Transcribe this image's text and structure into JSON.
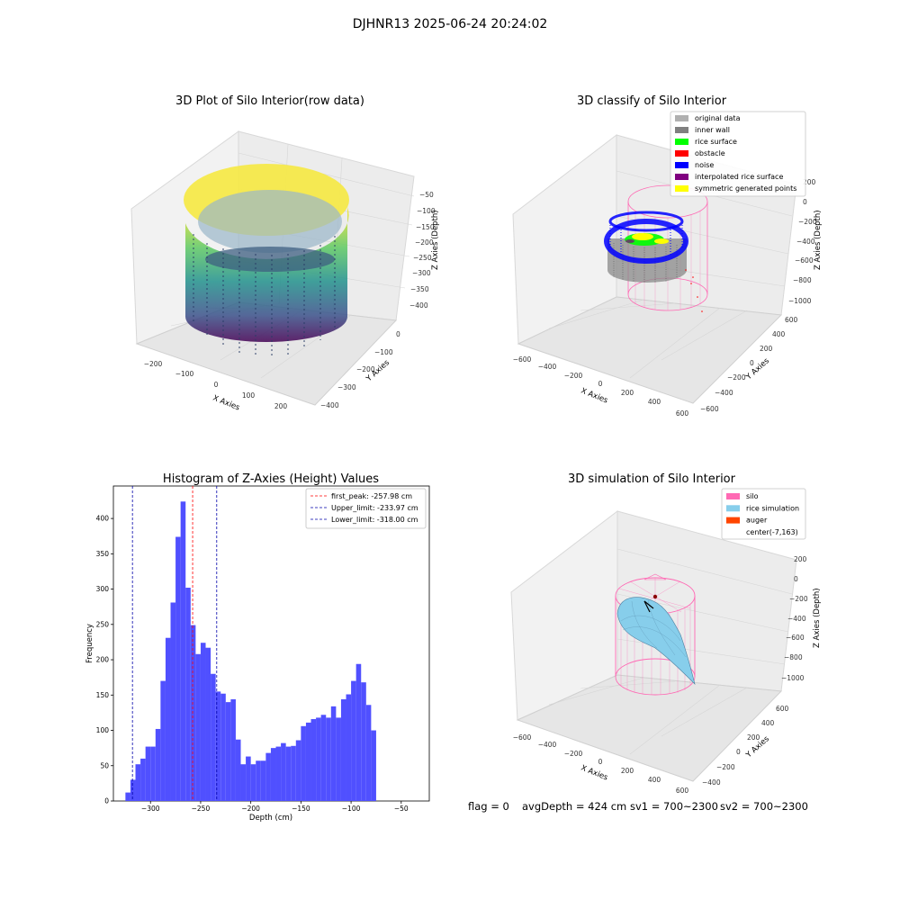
{
  "figure_title": "DJHNR13 2025-06-24 20:24:02",
  "colors": {
    "bar": "#5050ff",
    "first_peak": "#ff0000",
    "limit": "#0000aa",
    "silo": "#ff69b4",
    "rice_sim": "#87ceeb",
    "auger": "#ff4500",
    "inner_wall": "#808080",
    "noise": "#0000ff",
    "rice_surface": "#00ff00",
    "obstacle": "#ff0000",
    "interpolated": "#800080",
    "symmetric": "#ffff00",
    "original": "#b0b0b0"
  },
  "panel_raw": {
    "title": "3D Plot of Silo Interior(row data)",
    "xlabel": "X Axies",
    "ylabel": "Y Axies",
    "zlabel": "Z Axies (Depth)",
    "xticks": [
      "−200",
      "−100",
      "0",
      "100",
      "200"
    ],
    "yticks": [
      "0",
      "−100",
      "−200",
      "−300",
      "−400"
    ],
    "zticks": [
      "−50",
      "−100",
      "−150",
      "−200",
      "−250",
      "−300",
      "−350",
      "−400"
    ],
    "colormap": "viridis"
  },
  "panel_classify": {
    "title": "3D classify of Silo Interior",
    "xlabel": "X Axies",
    "ylabel": "Y Axies",
    "zlabel": "Z Axies (Depth)",
    "xticks": [
      "−600",
      "−400",
      "−200",
      "0",
      "200",
      "400",
      "600"
    ],
    "yticks": [
      "600",
      "400",
      "200",
      "0",
      "−200",
      "−400",
      "−600"
    ],
    "zticks": [
      "200",
      "0",
      "−200",
      "−400",
      "−600",
      "−800",
      "−1000"
    ],
    "legend": [
      {
        "label": "original data",
        "color": "#b0b0b0"
      },
      {
        "label": "inner wall",
        "color": "#808080"
      },
      {
        "label": "rice surface",
        "color": "#00ff00"
      },
      {
        "label": "obstacle",
        "color": "#ff0000"
      },
      {
        "label": "noise",
        "color": "#0000ff"
      },
      {
        "label": "interpolated rice surface",
        "color": "#800080"
      },
      {
        "label": "symmetric generated points",
        "color": "#ffff00"
      }
    ]
  },
  "panel_sim": {
    "title": "3D simulation of Silo Interior",
    "xlabel": "X Axies",
    "ylabel": "Y Axies",
    "zlabel": "Z Axies (Depth)",
    "xticks": [
      "−600",
      "−400",
      "−200",
      "0",
      "200",
      "400",
      "600"
    ],
    "yticks": [
      "600",
      "400",
      "200",
      "0",
      "−200",
      "−400"
    ],
    "zticks": [
      "200",
      "0",
      "−200",
      "−400",
      "−600",
      "−800",
      "−1000"
    ],
    "legend": [
      {
        "label": "silo",
        "color": "#ff69b4"
      },
      {
        "label": "rice simulation",
        "color": "#87ceeb"
      },
      {
        "label": "auger",
        "color": "#ff4500"
      },
      {
        "label": "center(-7,163)",
        "color": ""
      }
    ]
  },
  "status": {
    "flag": "flag = 0",
    "avg_depth": "avgDepth = 424 cm",
    "sv1": "sv1 = 700~2300",
    "sv2": "sv2 = 700~2300"
  },
  "chart_data": {
    "type": "bar",
    "title": "Histogram of Z-Axies (Height) Values",
    "xlabel": "Depth (cm)",
    "ylabel": "Frequency",
    "xlim": [
      -337,
      -22
    ],
    "ylim": [
      0,
      446
    ],
    "xticks": [
      -300,
      -250,
      -200,
      -150,
      -100,
      -50
    ],
    "yticks": [
      0,
      50,
      100,
      150,
      200,
      250,
      300,
      350,
      400
    ],
    "bin_start": -325,
    "bin_width": 5,
    "values": [
      12,
      30,
      52,
      60,
      77,
      77,
      102,
      170,
      231,
      281,
      374,
      424,
      302,
      249,
      208,
      224,
      217,
      180,
      155,
      152,
      140,
      144,
      87,
      52,
      63,
      52,
      57,
      57,
      68,
      75,
      77,
      82,
      77,
      78,
      86,
      106,
      111,
      116,
      118,
      122,
      118,
      134,
      118,
      144,
      151,
      170,
      194,
      168,
      136,
      100
    ],
    "lines": [
      {
        "name": "first_peak: -257.98 cm",
        "x": -257.98,
        "color": "#ff0000"
      },
      {
        "name": "Upper_limit: -233.97 cm",
        "x": -233.97,
        "color": "#0000aa"
      },
      {
        "name": "Lower_limit: -318.00 cm",
        "x": -318.0,
        "color": "#0000aa"
      }
    ]
  }
}
